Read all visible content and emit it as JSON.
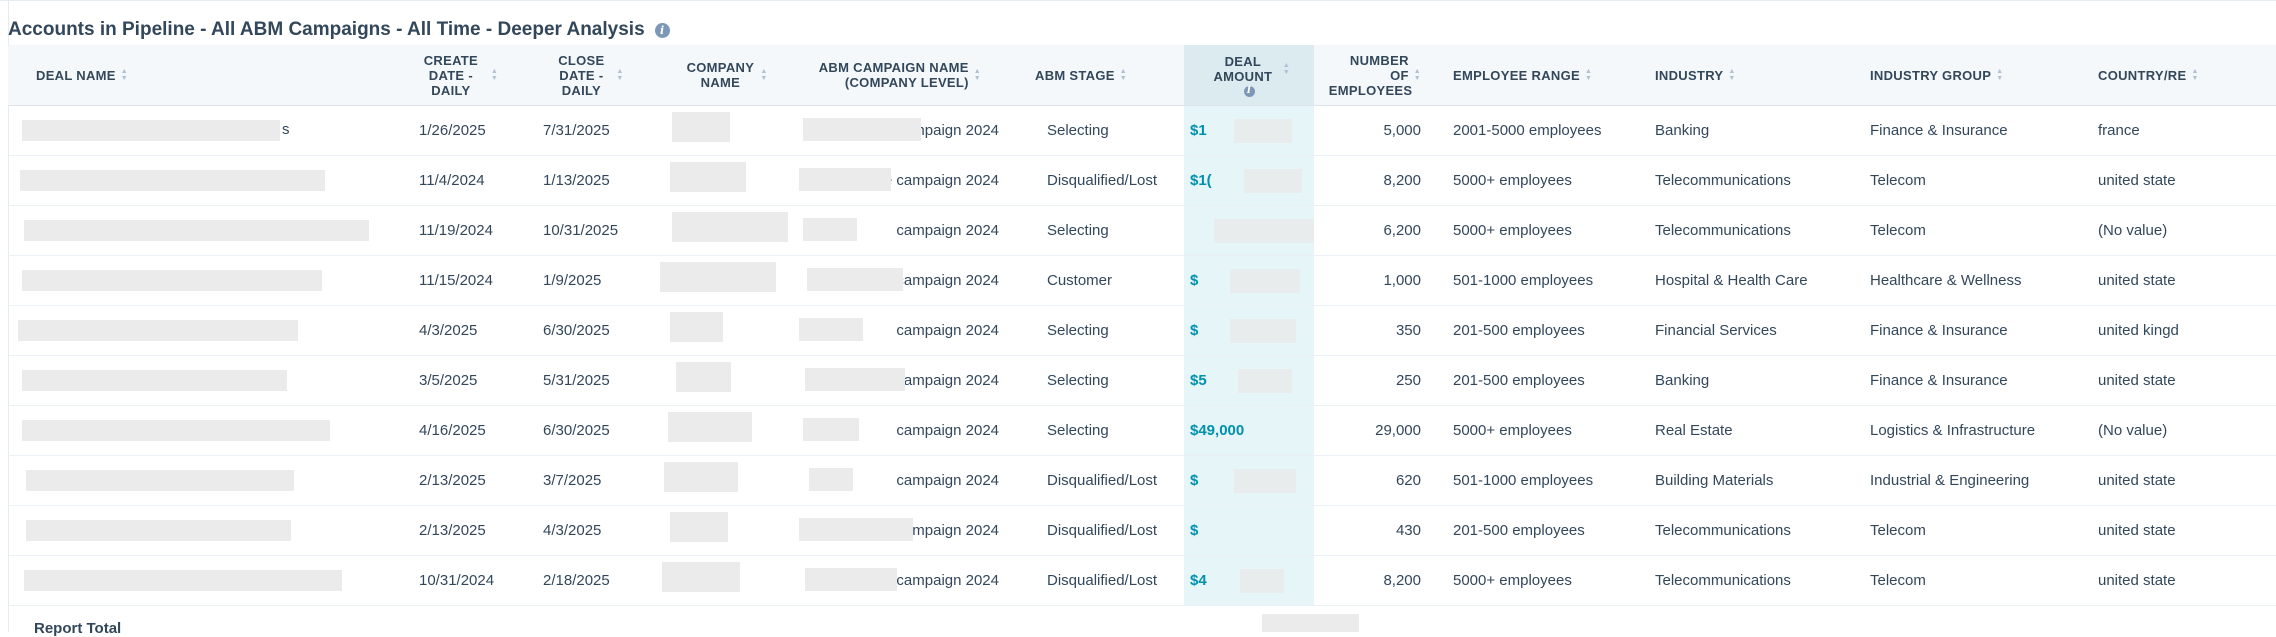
{
  "report": {
    "title": "Accounts in Pipeline - All ABM Campaigns - All Time - Deeper Analysis",
    "total_label": "Report Total"
  },
  "columns": [
    {
      "id": "deal_name",
      "label": "DEAL NAME"
    },
    {
      "id": "create_date",
      "label": "CREATE DATE - DAILY"
    },
    {
      "id": "close_date",
      "label": "CLOSE DATE - DAILY"
    },
    {
      "id": "company_name",
      "label": "COMPANY NAME"
    },
    {
      "id": "abm_campaign",
      "label": "ABM CAMPAIGN NAME (COMPANY LEVEL)"
    },
    {
      "id": "abm_stage",
      "label": "ABM STAGE"
    },
    {
      "id": "deal_amount",
      "label": "DEAL AMOUNT"
    },
    {
      "id": "employees",
      "label": "NUMBER OF EMPLOYEES"
    },
    {
      "id": "employee_range",
      "label": "EMPLOYEE RANGE"
    },
    {
      "id": "industry",
      "label": "INDUSTRY"
    },
    {
      "id": "industry_group",
      "label": "INDUSTRY GROUP"
    },
    {
      "id": "country",
      "label": "COUNTRY/RE"
    }
  ],
  "rows": [
    {
      "deal": "s",
      "create": "1/26/2025",
      "close": "7/31/2025",
      "campaign": "mpaign 2024",
      "stage": "Selecting",
      "amount": "$1",
      "employees": "5,000",
      "range": "2001-5000 employees",
      "industry": "Banking",
      "group": "Finance & Insurance",
      "country": "france"
    },
    {
      "deal": "",
      "create": "11/4/2024",
      "close": "1/13/2025",
      "campaign": "e campaign 2024",
      "stage": "Disqualified/Lost",
      "amount": "$1(",
      "employees": "8,200",
      "range": "5000+ employees",
      "industry": "Telecommunications",
      "group": "Telecom",
      "country": "united state"
    },
    {
      "deal": "",
      "create": "11/19/2024",
      "close": "10/31/2025",
      "campaign": "campaign 2024",
      "stage": "Selecting",
      "amount": "",
      "employees": "6,200",
      "range": "5000+ employees",
      "industry": "Telecommunications",
      "group": "Telecom",
      "country": "(No value)"
    },
    {
      "deal": "",
      "create": "11/15/2024",
      "close": "1/9/2025",
      "campaign": "campaign 2024",
      "stage": "Customer",
      "amount": "$",
      "employees": "1,000",
      "range": "501-1000 employees",
      "industry": "Hospital & Health Care",
      "group": "Healthcare & Wellness",
      "country": "united state"
    },
    {
      "deal": "",
      "create": "4/3/2025",
      "close": "6/30/2025",
      "campaign": "campaign 2024",
      "stage": "Selecting",
      "amount": "$",
      "employees": "350",
      "range": "201-500 employees",
      "industry": "Financial Services",
      "group": "Finance & Insurance",
      "country": "united kingd"
    },
    {
      "deal": "",
      "create": "3/5/2025",
      "close": "5/31/2025",
      "campaign": "e campaign 2024",
      "stage": "Selecting",
      "amount": "$5",
      "employees": "250",
      "range": "201-500 employees",
      "industry": "Banking",
      "group": "Finance & Insurance",
      "country": "united state"
    },
    {
      "deal": "",
      "create": "4/16/2025",
      "close": "6/30/2025",
      "campaign": "campaign 2024",
      "stage": "Selecting",
      "amount": "$49,000",
      "employees": "29,000",
      "range": "5000+ employees",
      "industry": "Real Estate",
      "group": "Logistics & Infrastructure",
      "country": "(No value)"
    },
    {
      "deal": "",
      "create": "2/13/2025",
      "close": "3/7/2025",
      "campaign": "campaign 2024",
      "stage": "Disqualified/Lost",
      "amount": "$",
      "employees": "620",
      "range": "501-1000 employees",
      "industry": "Building Materials",
      "group": "Industrial & Engineering",
      "country": "united state"
    },
    {
      "deal": "",
      "create": "2/13/2025",
      "close": "4/3/2025",
      "campaign": "campaign 2024",
      "stage": "Disqualified/Lost",
      "amount": "$",
      "employees": "430",
      "range": "201-500 employees",
      "industry": "Telecommunications",
      "group": "Telecom",
      "country": "united state"
    },
    {
      "deal": "",
      "create": "10/31/2024",
      "close": "2/18/2025",
      "campaign": "e campaign 2024",
      "stage": "Disqualified/Lost",
      "amount": "$4",
      "employees": "8,200",
      "range": "5000+ employees",
      "industry": "Telecommunications",
      "group": "Telecom",
      "country": "united state"
    }
  ]
}
